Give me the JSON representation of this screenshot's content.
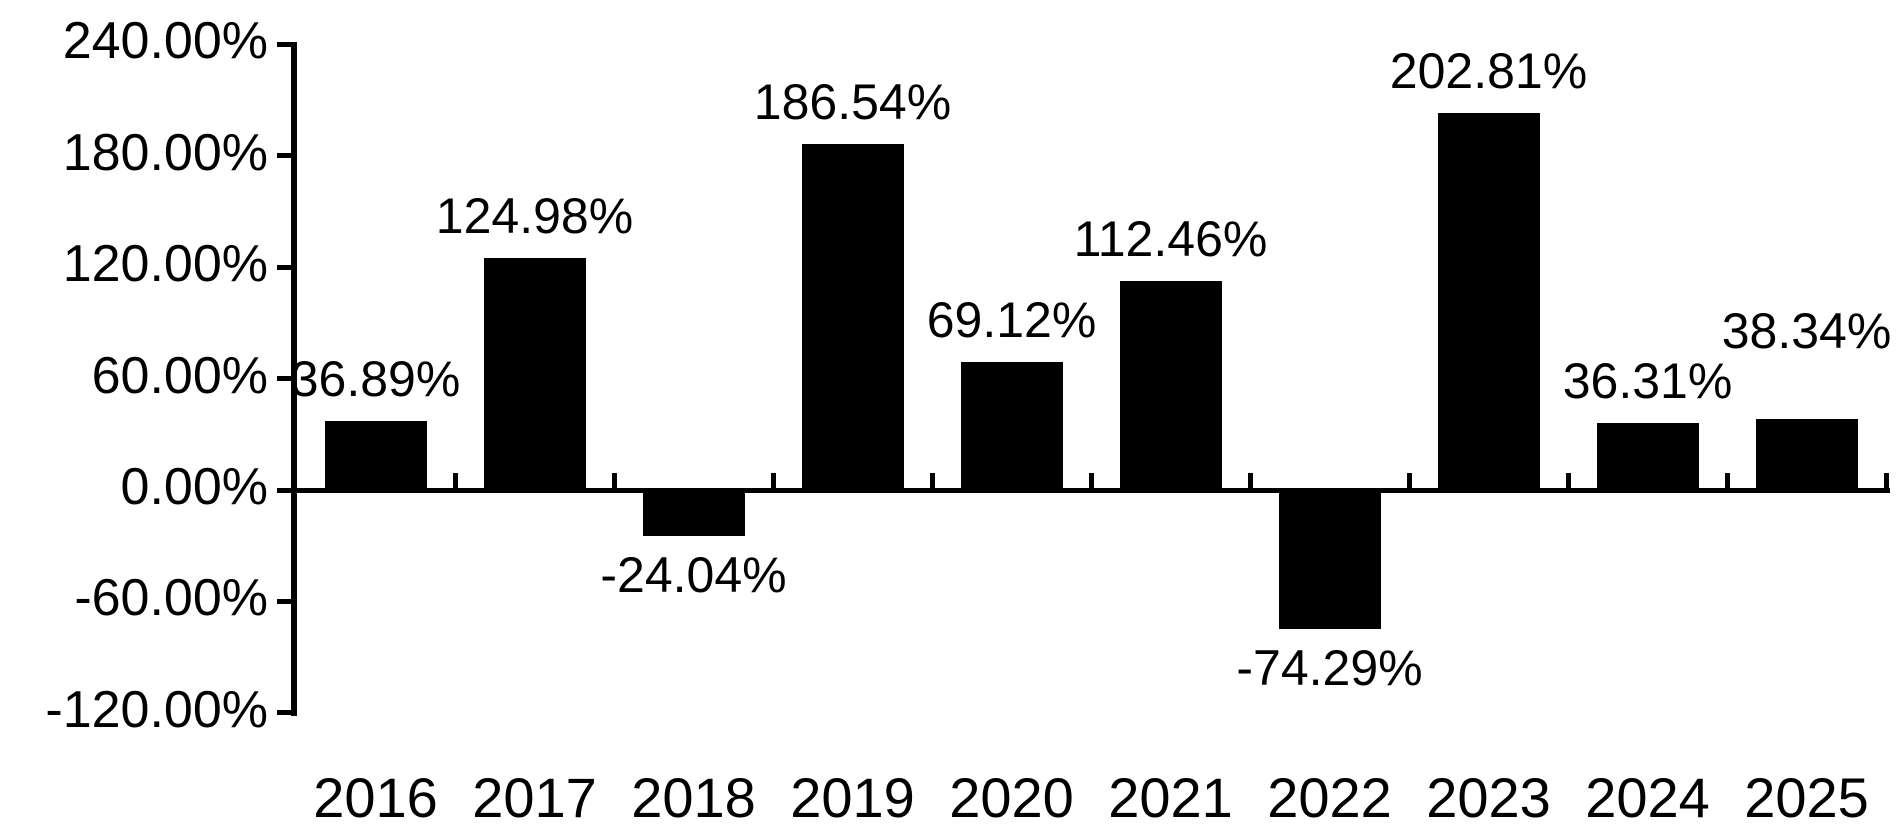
{
  "chart_data": {
    "type": "bar",
    "title": "",
    "xlabel": "",
    "ylabel": "",
    "categories": [
      "2016",
      "2017",
      "2018",
      "2019",
      "2020",
      "2021",
      "2022",
      "2023",
      "2024",
      "2025"
    ],
    "values": [
      36.89,
      124.98,
      -24.04,
      186.54,
      69.12,
      112.46,
      -74.29,
      202.81,
      36.31,
      38.34
    ],
    "data_labels": [
      "36.89%",
      "124.98%",
      "-24.04%",
      "186.54%",
      "69.12%",
      "112.46%",
      "-74.29%",
      "202.81%",
      "36.31%",
      "38.34%"
    ],
    "y_tick_labels": [
      "240.00%",
      "180.00%",
      "120.00%",
      "60.00%",
      "0.00%",
      "-60.00%",
      "-120.00%"
    ],
    "y_tick_values": [
      240,
      180,
      120,
      60,
      0,
      -60,
      -120
    ],
    "ylim": [
      -120,
      240
    ],
    "y_tick_step": 60,
    "grid": false,
    "legend": "none",
    "bar_color": "#000000",
    "axis_color": "#000000",
    "text_color": "#000000",
    "background_color": "#ffffff",
    "label_position": "outside-end",
    "label_dy_hint": [
      0,
      0,
      0,
      0,
      0,
      0,
      0,
      0,
      0,
      -46
    ]
  }
}
